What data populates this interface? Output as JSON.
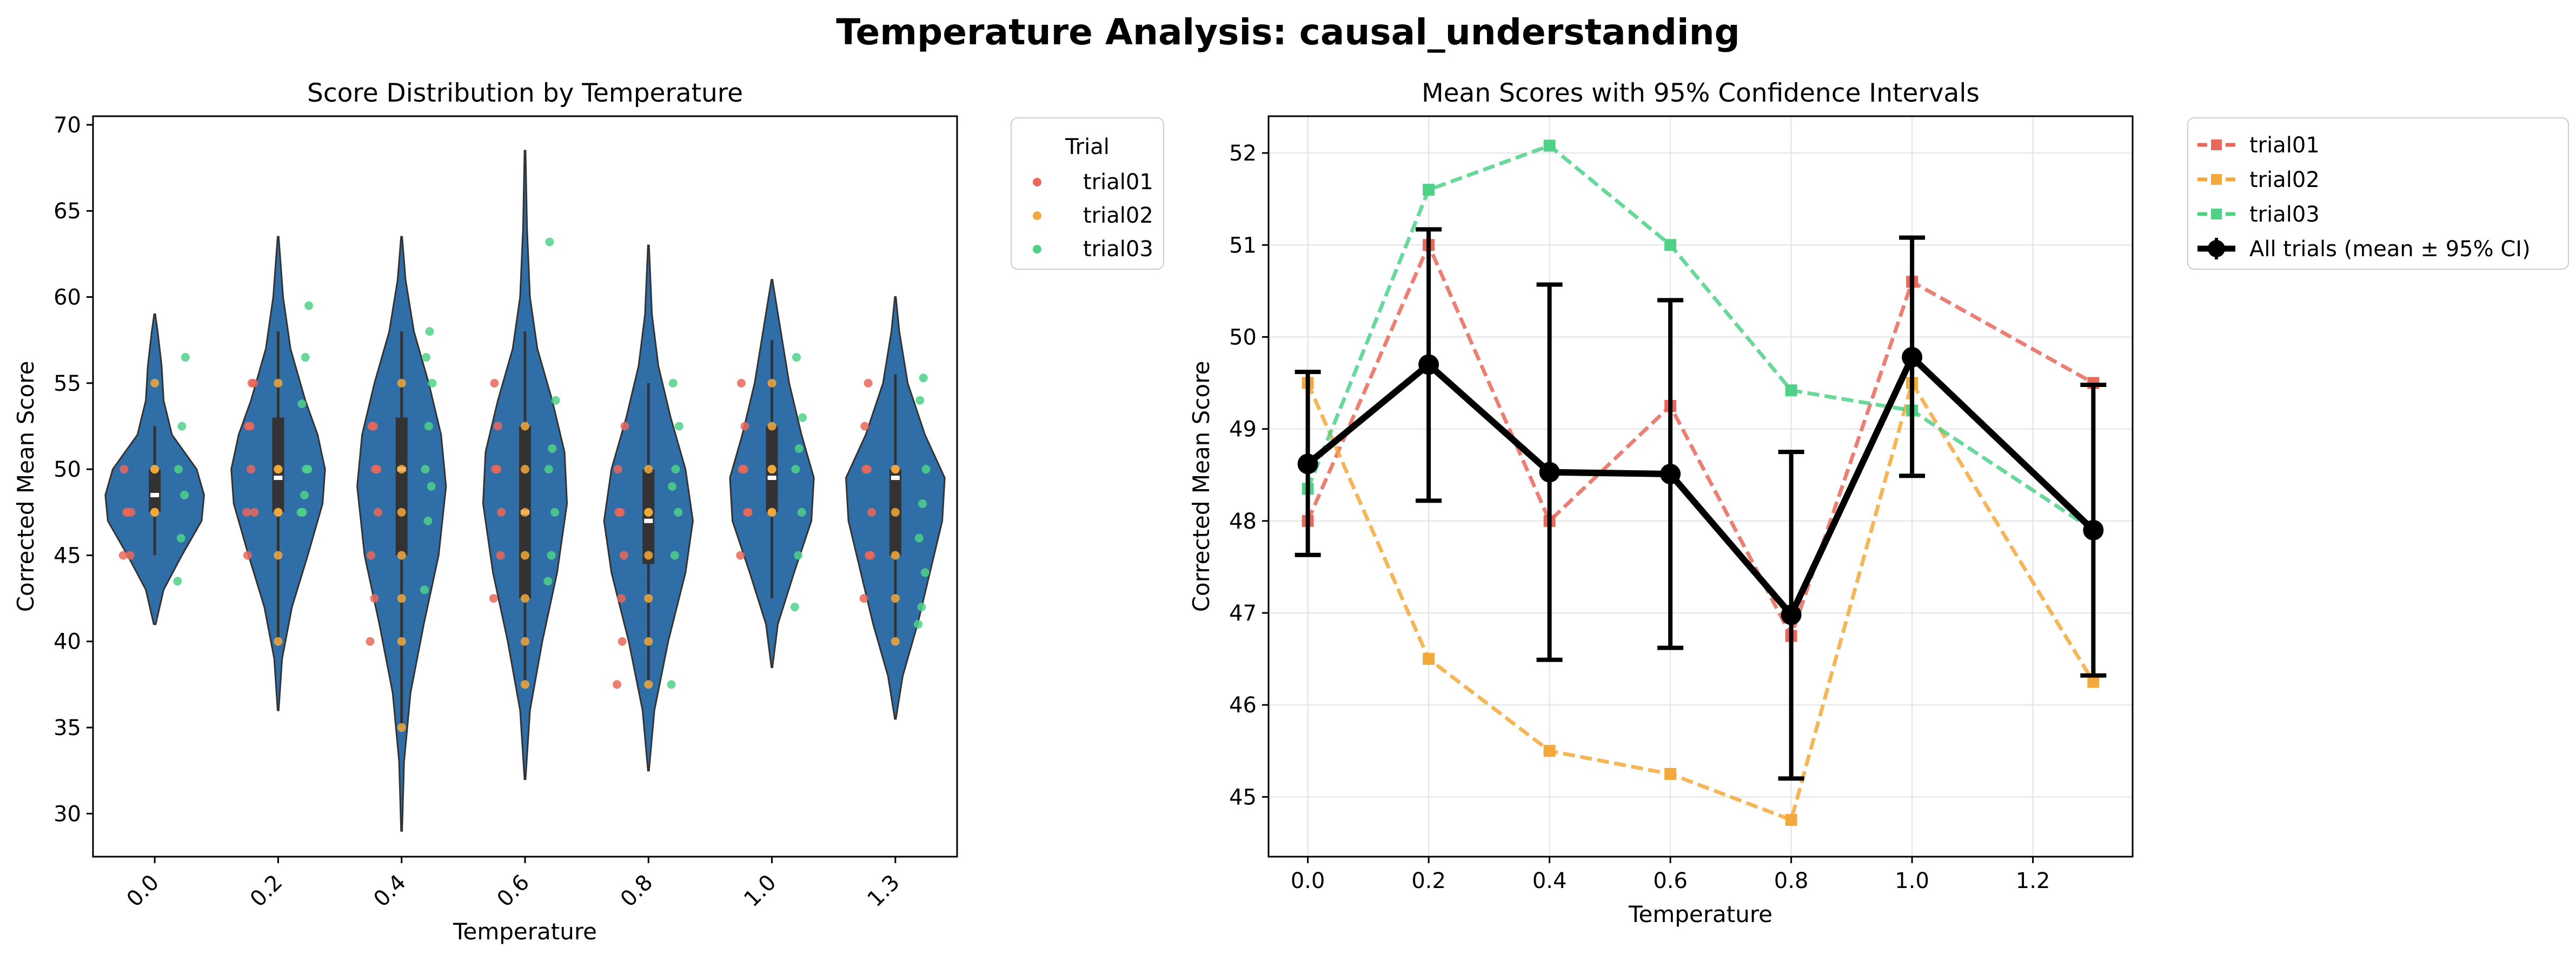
{
  "suptitle": "Temperature Analysis: causal_understanding",
  "colors": {
    "violin": "#2f6ea7",
    "violin_edge": "#333333",
    "trial01": "#e8685b",
    "trial02": "#f2a93b",
    "trial03": "#4fd188",
    "overall": "#000000"
  },
  "chart_data": [
    {
      "type": "violin",
      "title": "Score Distribution by Temperature",
      "xlabel": "Temperature",
      "ylabel": "Corrected Mean Score",
      "categories": [
        "0.0",
        "0.2",
        "0.4",
        "0.6",
        "0.8",
        "1.0",
        "1.3"
      ],
      "ylim": [
        27.5,
        70.5
      ],
      "yticks": [
        30,
        35,
        40,
        45,
        50,
        55,
        60,
        65,
        70
      ],
      "violins": [
        {
          "min": 41,
          "max": 59,
          "q1": 47.5,
          "median": 48.5,
          "q3": 50,
          "whisker_low": 45,
          "whisker_high": 52.5,
          "profile": [
            [
              41,
              0.02
            ],
            [
              43,
              0.18
            ],
            [
              45,
              0.55
            ],
            [
              47,
              0.95
            ],
            [
              48.5,
              1.0
            ],
            [
              50,
              0.85
            ],
            [
              52,
              0.35
            ],
            [
              54,
              0.18
            ],
            [
              56,
              0.14
            ],
            [
              58,
              0.06
            ],
            [
              59,
              0.01
            ]
          ]
        },
        {
          "min": 36,
          "max": 63.5,
          "q1": 47.5,
          "median": 49.5,
          "q3": 53,
          "whisker_low": 40,
          "whisker_high": 58,
          "profile": [
            [
              36,
              0.01
            ],
            [
              39,
              0.08
            ],
            [
              42,
              0.28
            ],
            [
              45,
              0.6
            ],
            [
              48,
              0.9
            ],
            [
              50,
              0.95
            ],
            [
              52,
              0.8
            ],
            [
              54,
              0.55
            ],
            [
              57,
              0.25
            ],
            [
              60,
              0.1
            ],
            [
              63.5,
              0.01
            ]
          ]
        },
        {
          "min": 29,
          "max": 63.5,
          "q1": 45,
          "median": 50,
          "q3": 53,
          "whisker_low": 35,
          "whisker_high": 58,
          "profile": [
            [
              29,
              0.01
            ],
            [
              33,
              0.05
            ],
            [
              37,
              0.18
            ],
            [
              41,
              0.45
            ],
            [
              45,
              0.75
            ],
            [
              49,
              0.9
            ],
            [
              52,
              0.8
            ],
            [
              55,
              0.55
            ],
            [
              58,
              0.25
            ],
            [
              61,
              0.08
            ],
            [
              63.5,
              0.01
            ]
          ]
        },
        {
          "min": 32,
          "max": 68.5,
          "q1": 42.5,
          "median": 47.5,
          "q3": 52.5,
          "whisker_low": 37.5,
          "whisker_high": 58,
          "profile": [
            [
              32,
              0.01
            ],
            [
              36,
              0.1
            ],
            [
              40,
              0.35
            ],
            [
              44,
              0.65
            ],
            [
              48,
              0.85
            ],
            [
              51,
              0.8
            ],
            [
              54,
              0.55
            ],
            [
              57,
              0.25
            ],
            [
              60,
              0.1
            ],
            [
              64,
              0.04
            ],
            [
              68.5,
              0.01
            ]
          ]
        },
        {
          "min": 32.5,
          "max": 63,
          "q1": 44.5,
          "median": 47,
          "q3": 50,
          "whisker_low": 37.5,
          "whisker_high": 55,
          "profile": [
            [
              32.5,
              0.01
            ],
            [
              36,
              0.12
            ],
            [
              40,
              0.4
            ],
            [
              44,
              0.75
            ],
            [
              47,
              0.9
            ],
            [
              50,
              0.75
            ],
            [
              53,
              0.45
            ],
            [
              56,
              0.2
            ],
            [
              59,
              0.07
            ],
            [
              63,
              0.01
            ]
          ]
        },
        {
          "min": 38.5,
          "max": 61,
          "q1": 47.5,
          "median": 49.5,
          "q3": 52.5,
          "whisker_low": 42.5,
          "whisker_high": 57.5,
          "profile": [
            [
              38.5,
              0.01
            ],
            [
              41,
              0.12
            ],
            [
              44,
              0.45
            ],
            [
              47,
              0.8
            ],
            [
              49.5,
              0.85
            ],
            [
              52,
              0.6
            ],
            [
              55,
              0.35
            ],
            [
              58,
              0.18
            ],
            [
              61,
              0.01
            ]
          ]
        },
        {
          "min": 35.5,
          "max": 60,
          "q1": 45,
          "median": 49.5,
          "q3": 50,
          "whisker_low": 40,
          "whisker_high": 55.5,
          "profile": [
            [
              35.5,
              0.01
            ],
            [
              38,
              0.15
            ],
            [
              41,
              0.45
            ],
            [
              44,
              0.7
            ],
            [
              47,
              0.95
            ],
            [
              49.5,
              1.0
            ],
            [
              52,
              0.6
            ],
            [
              55,
              0.25
            ],
            [
              58,
              0.08
            ],
            [
              60,
              0.01
            ]
          ]
        }
      ],
      "strip_points": {
        "trial01": [
          [
            45,
            47.5,
            45,
            50,
            47.5,
            47.5
          ],
          [
            47.5,
            52.5,
            55,
            45,
            50,
            47.5,
            52.5,
            55
          ],
          [
            40,
            52.5,
            50,
            45,
            42.5,
            47.5,
            52.5,
            50
          ],
          [
            42.5,
            50,
            45,
            55,
            52.5,
            47.5,
            50
          ],
          [
            37.5,
            47.5,
            45,
            50,
            42.5,
            52.5,
            47.5,
            40
          ],
          [
            45,
            50,
            47.5,
            55,
            52.5,
            47.5,
            50
          ],
          [
            42.5,
            50,
            45,
            52.5,
            55,
            47.5,
            50,
            45
          ]
        ],
        "trial02": [
          [
            47.5,
            50,
            55,
            47.5,
            50,
            47.5
          ],
          [
            45,
            47.5,
            50,
            40,
            50,
            55,
            47.5
          ],
          [
            35,
            42.5,
            47.5,
            50,
            55,
            40,
            45
          ],
          [
            37.5,
            40,
            45,
            47.5,
            52.5,
            50,
            42.5
          ],
          [
            37.5,
            40,
            45,
            47.5,
            50,
            42.5,
            47.5
          ],
          [
            47.5,
            50,
            52.5,
            55,
            47.5,
            50
          ],
          [
            40,
            45,
            47.5,
            50,
            50,
            42.5
          ]
        ],
        "trial03": [
          [
            43.5,
            46,
            48.5,
            50,
            52.5,
            56.5
          ],
          [
            47.5,
            48.5,
            50,
            53.8,
            56.5,
            59.5,
            47.5,
            50
          ],
          [
            43,
            47,
            49,
            50,
            52.5,
            55,
            56.5,
            58
          ],
          [
            43.5,
            45,
            47.5,
            50,
            51.2,
            54,
            63.2
          ],
          [
            37.5,
            45,
            47.5,
            49,
            50,
            52.5,
            55
          ],
          [
            42,
            45,
            47.5,
            50,
            51.2,
            53,
            56.5
          ],
          [
            41,
            42,
            44,
            46,
            48,
            50,
            54,
            55.3
          ]
        ]
      },
      "legend": {
        "title": "Trial",
        "entries": [
          "trial01",
          "trial02",
          "trial03"
        ]
      }
    },
    {
      "type": "line",
      "title": "Mean Scores with 95% Confidence Intervals",
      "xlabel": "Temperature",
      "ylabel": "Corrected Mean Score",
      "x": [
        0.0,
        0.2,
        0.4,
        0.6,
        0.8,
        1.0,
        1.3
      ],
      "xlim": [
        -0.065,
        1.365
      ],
      "xticks": [
        0.0,
        0.2,
        0.4,
        0.6,
        0.8,
        1.0,
        1.2
      ],
      "xtick_labels": [
        "0.0",
        "0.2",
        "0.4",
        "0.6",
        "0.8",
        "1.0",
        "1.2"
      ],
      "ylim": [
        44.35,
        52.4
      ],
      "yticks": [
        45,
        46,
        47,
        48,
        49,
        50,
        51,
        52
      ],
      "series": [
        {
          "name": "trial01",
          "values": [
            48.0,
            51.0,
            48.0,
            49.25,
            46.75,
            50.6,
            49.5
          ]
        },
        {
          "name": "trial02",
          "values": [
            49.5,
            46.5,
            45.5,
            45.25,
            44.75,
            49.5,
            46.25
          ]
        },
        {
          "name": "trial03",
          "values": [
            48.35,
            51.6,
            52.08,
            51.0,
            49.42,
            49.2,
            47.9
          ]
        }
      ],
      "overall": {
        "name": "All trials (mean ± 95% CI)",
        "mean": [
          48.62,
          49.7,
          48.53,
          48.51,
          46.98,
          49.78,
          47.9
        ],
        "ci_low": [
          47.63,
          48.22,
          46.49,
          46.62,
          45.2,
          48.49,
          46.32
        ],
        "ci_high": [
          49.62,
          51.17,
          50.57,
          50.4,
          48.75,
          51.08,
          49.48
        ]
      },
      "legend": {
        "entries": [
          "trial01",
          "trial02",
          "trial03",
          "All trials (mean ± 95% CI)"
        ]
      }
    }
  ]
}
